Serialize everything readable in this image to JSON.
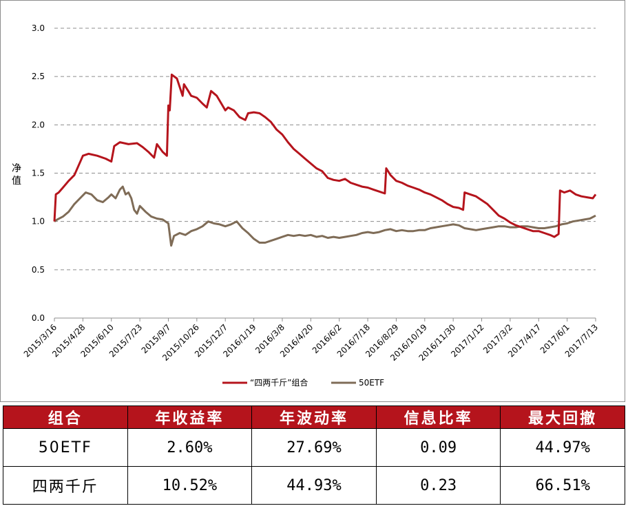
{
  "chart_data": {
    "type": "line",
    "ylabel": "净值",
    "ylim": [
      0,
      3.0
    ],
    "yticks": [
      "0.0",
      "0.5",
      "1.0",
      "1.5",
      "2.0",
      "2.5",
      "3.0"
    ],
    "xticks": [
      "2015/3/16",
      "2015/4/28",
      "2015/6/10",
      "2015/7/23",
      "2015/9/7",
      "2015/10/26",
      "2015/12/7",
      "2016/1/19",
      "2016/3/8",
      "2016/4/20",
      "2016/6/2",
      "2016/7/18",
      "2016/8/29",
      "2016/10/19",
      "2016/11/30",
      "2017/1/12",
      "2017/3/2",
      "2017/4/17",
      "2017/6/1",
      "2017/7/13"
    ],
    "grid": true,
    "legend_position": "bottom",
    "series": [
      {
        "name": "“四两千斤”组合",
        "color": "#b5141c",
        "points": [
          [
            0,
            1.0
          ],
          [
            0.05,
            1.28
          ],
          [
            0.15,
            1.3
          ],
          [
            0.3,
            1.35
          ],
          [
            0.5,
            1.42
          ],
          [
            0.7,
            1.48
          ],
          [
            0.85,
            1.58
          ],
          [
            1.0,
            1.68
          ],
          [
            1.2,
            1.7
          ],
          [
            1.5,
            1.68
          ],
          [
            1.8,
            1.65
          ],
          [
            2.0,
            1.62
          ],
          [
            2.1,
            1.78
          ],
          [
            2.3,
            1.82
          ],
          [
            2.6,
            1.8
          ],
          [
            2.9,
            1.81
          ],
          [
            3.1,
            1.77
          ],
          [
            3.3,
            1.72
          ],
          [
            3.5,
            1.66
          ],
          [
            3.6,
            1.8
          ],
          [
            3.8,
            1.72
          ],
          [
            3.95,
            1.68
          ],
          [
            4.0,
            2.2
          ],
          [
            4.05,
            2.15
          ],
          [
            4.12,
            2.52
          ],
          [
            4.3,
            2.48
          ],
          [
            4.5,
            2.3
          ],
          [
            4.55,
            2.42
          ],
          [
            4.7,
            2.35
          ],
          [
            4.8,
            2.3
          ],
          [
            5.0,
            2.28
          ],
          [
            5.2,
            2.22
          ],
          [
            5.35,
            2.18
          ],
          [
            5.5,
            2.35
          ],
          [
            5.7,
            2.3
          ],
          [
            5.9,
            2.2
          ],
          [
            6.0,
            2.15
          ],
          [
            6.1,
            2.18
          ],
          [
            6.3,
            2.15
          ],
          [
            6.5,
            2.08
          ],
          [
            6.7,
            2.05
          ],
          [
            6.8,
            2.12
          ],
          [
            7.0,
            2.13
          ],
          [
            7.2,
            2.12
          ],
          [
            7.4,
            2.08
          ],
          [
            7.6,
            2.03
          ],
          [
            7.8,
            1.95
          ],
          [
            8.0,
            1.9
          ],
          [
            8.2,
            1.82
          ],
          [
            8.4,
            1.75
          ],
          [
            8.6,
            1.7
          ],
          [
            8.8,
            1.65
          ],
          [
            9.0,
            1.6
          ],
          [
            9.2,
            1.55
          ],
          [
            9.4,
            1.52
          ],
          [
            9.6,
            1.45
          ],
          [
            9.8,
            1.43
          ],
          [
            10.0,
            1.42
          ],
          [
            10.2,
            1.44
          ],
          [
            10.4,
            1.4
          ],
          [
            10.6,
            1.38
          ],
          [
            10.8,
            1.36
          ],
          [
            11.0,
            1.35
          ],
          [
            11.2,
            1.33
          ],
          [
            11.4,
            1.31
          ],
          [
            11.6,
            1.29
          ],
          [
            11.65,
            1.55
          ],
          [
            11.8,
            1.48
          ],
          [
            12.0,
            1.42
          ],
          [
            12.2,
            1.4
          ],
          [
            12.4,
            1.37
          ],
          [
            12.6,
            1.35
          ],
          [
            12.8,
            1.33
          ],
          [
            13.0,
            1.3
          ],
          [
            13.2,
            1.28
          ],
          [
            13.4,
            1.25
          ],
          [
            13.6,
            1.22
          ],
          [
            13.8,
            1.18
          ],
          [
            14.0,
            1.15
          ],
          [
            14.2,
            1.14
          ],
          [
            14.35,
            1.12
          ],
          [
            14.4,
            1.3
          ],
          [
            14.6,
            1.28
          ],
          [
            14.8,
            1.26
          ],
          [
            15.0,
            1.22
          ],
          [
            15.2,
            1.18
          ],
          [
            15.4,
            1.12
          ],
          [
            15.6,
            1.06
          ],
          [
            15.8,
            1.03
          ],
          [
            16.0,
            0.99
          ],
          [
            16.2,
            0.96
          ],
          [
            16.4,
            0.94
          ],
          [
            16.6,
            0.92
          ],
          [
            16.8,
            0.9
          ],
          [
            17.0,
            0.9
          ],
          [
            17.2,
            0.88
          ],
          [
            17.4,
            0.86
          ],
          [
            17.55,
            0.84
          ],
          [
            17.7,
            0.87
          ],
          [
            17.75,
            1.32
          ],
          [
            17.9,
            1.3
          ],
          [
            18.1,
            1.32
          ],
          [
            18.3,
            1.28
          ],
          [
            18.5,
            1.26
          ],
          [
            18.7,
            1.25
          ],
          [
            18.9,
            1.24
          ],
          [
            19.0,
            1.28
          ]
        ]
      },
      {
        "name": "50ETF",
        "color": "#7f6c57",
        "points": [
          [
            0,
            1.0
          ],
          [
            0.1,
            1.02
          ],
          [
            0.3,
            1.05
          ],
          [
            0.5,
            1.1
          ],
          [
            0.7,
            1.18
          ],
          [
            0.9,
            1.24
          ],
          [
            1.1,
            1.3
          ],
          [
            1.3,
            1.28
          ],
          [
            1.5,
            1.22
          ],
          [
            1.7,
            1.2
          ],
          [
            1.9,
            1.25
          ],
          [
            2.0,
            1.28
          ],
          [
            2.15,
            1.24
          ],
          [
            2.3,
            1.33
          ],
          [
            2.4,
            1.36
          ],
          [
            2.5,
            1.28
          ],
          [
            2.6,
            1.3
          ],
          [
            2.7,
            1.24
          ],
          [
            2.8,
            1.12
          ],
          [
            2.9,
            1.08
          ],
          [
            3.0,
            1.16
          ],
          [
            3.2,
            1.1
          ],
          [
            3.4,
            1.05
          ],
          [
            3.6,
            1.03
          ],
          [
            3.8,
            1.02
          ],
          [
            4.0,
            0.98
          ],
          [
            4.1,
            0.75
          ],
          [
            4.2,
            0.85
          ],
          [
            4.4,
            0.88
          ],
          [
            4.6,
            0.86
          ],
          [
            4.8,
            0.9
          ],
          [
            5.0,
            0.92
          ],
          [
            5.2,
            0.95
          ],
          [
            5.4,
            1.0
          ],
          [
            5.6,
            0.98
          ],
          [
            5.8,
            0.97
          ],
          [
            6.0,
            0.95
          ],
          [
            6.2,
            0.97
          ],
          [
            6.4,
            1.0
          ],
          [
            6.6,
            0.93
          ],
          [
            6.8,
            0.88
          ],
          [
            7.0,
            0.82
          ],
          [
            7.2,
            0.78
          ],
          [
            7.4,
            0.78
          ],
          [
            7.6,
            0.8
          ],
          [
            7.8,
            0.82
          ],
          [
            8.0,
            0.84
          ],
          [
            8.2,
            0.86
          ],
          [
            8.4,
            0.85
          ],
          [
            8.6,
            0.86
          ],
          [
            8.8,
            0.85
          ],
          [
            9.0,
            0.86
          ],
          [
            9.2,
            0.84
          ],
          [
            9.4,
            0.85
          ],
          [
            9.6,
            0.83
          ],
          [
            9.8,
            0.84
          ],
          [
            10.0,
            0.83
          ],
          [
            10.2,
            0.84
          ],
          [
            10.4,
            0.85
          ],
          [
            10.6,
            0.86
          ],
          [
            10.8,
            0.88
          ],
          [
            11.0,
            0.89
          ],
          [
            11.2,
            0.88
          ],
          [
            11.4,
            0.89
          ],
          [
            11.6,
            0.91
          ],
          [
            11.8,
            0.92
          ],
          [
            12.0,
            0.9
          ],
          [
            12.2,
            0.91
          ],
          [
            12.4,
            0.9
          ],
          [
            12.6,
            0.9
          ],
          [
            12.8,
            0.91
          ],
          [
            13.0,
            0.91
          ],
          [
            13.2,
            0.93
          ],
          [
            13.4,
            0.94
          ],
          [
            13.6,
            0.95
          ],
          [
            13.8,
            0.96
          ],
          [
            14.0,
            0.97
          ],
          [
            14.2,
            0.96
          ],
          [
            14.4,
            0.93
          ],
          [
            14.6,
            0.92
          ],
          [
            14.8,
            0.91
          ],
          [
            15.0,
            0.92
          ],
          [
            15.2,
            0.93
          ],
          [
            15.4,
            0.94
          ],
          [
            15.6,
            0.95
          ],
          [
            15.8,
            0.95
          ],
          [
            16.0,
            0.94
          ],
          [
            16.2,
            0.94
          ],
          [
            16.4,
            0.95
          ],
          [
            16.6,
            0.95
          ],
          [
            16.8,
            0.94
          ],
          [
            17.0,
            0.93
          ],
          [
            17.2,
            0.93
          ],
          [
            17.4,
            0.94
          ],
          [
            17.6,
            0.95
          ],
          [
            17.8,
            0.97
          ],
          [
            18.0,
            0.98
          ],
          [
            18.2,
            1.0
          ],
          [
            18.4,
            1.01
          ],
          [
            18.6,
            1.02
          ],
          [
            18.8,
            1.03
          ],
          [
            19.0,
            1.06
          ]
        ]
      }
    ]
  },
  "table": {
    "headers": [
      "组合",
      "年收益率",
      "年波动率",
      "信息比率",
      "最大回撤"
    ],
    "rows": [
      [
        "50ETF",
        "2.60%",
        "27.69%",
        "0.09",
        "44.97%"
      ],
      [
        "四两千斤",
        "10.52%",
        "44.93%",
        "0.23",
        "66.51%"
      ]
    ]
  }
}
